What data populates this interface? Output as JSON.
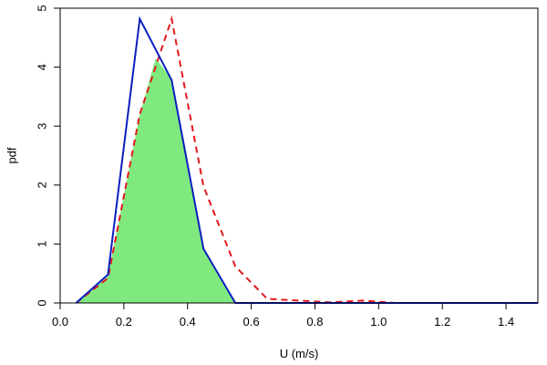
{
  "chart_data": {
    "type": "line",
    "title": "",
    "xlabel": "U (m/s)",
    "ylabel": "pdf",
    "xlim": [
      0,
      1.5
    ],
    "ylim": [
      0,
      5
    ],
    "xticks": [
      0.0,
      0.2,
      0.4,
      0.6,
      0.8,
      1.0,
      1.2,
      1.4
    ],
    "xtick_labels": [
      "0.0",
      "0.2",
      "0.4",
      "0.6",
      "0.8",
      "1.0",
      "1.2",
      "1.4"
    ],
    "yticks": [
      0,
      1,
      2,
      3,
      4,
      5
    ],
    "ytick_labels": [
      "0",
      "1",
      "2",
      "3",
      "4",
      "5"
    ],
    "grid": false,
    "series": [
      {
        "style": "area",
        "color": "#7fe97f",
        "x": [
          0.05,
          0.15,
          0.25,
          0.3,
          0.35,
          0.45,
          0.55
        ],
        "y": [
          0.0,
          0.45,
          3.2,
          4.15,
          3.8,
          0.92,
          0.0
        ]
      },
      {
        "style": "dashed",
        "color": "#e31a1c",
        "x": [
          0.05,
          0.15,
          0.25,
          0.35,
          0.45,
          0.55,
          0.65,
          0.75,
          0.85,
          0.95,
          1.05,
          1.15,
          1.25,
          1.35,
          1.45,
          1.5
        ],
        "y": [
          0.0,
          0.42,
          3.2,
          4.82,
          1.98,
          0.62,
          0.07,
          0.04,
          0.01,
          0.04,
          0.0,
          0.0,
          0.0,
          0.0,
          0.0,
          0.0
        ]
      },
      {
        "style": "solid",
        "color": "#0a1fbf",
        "x": [
          0.05,
          0.15,
          0.25,
          0.35,
          0.45,
          0.55,
          0.65,
          0.75,
          0.85,
          0.95,
          1.05,
          1.15,
          1.25,
          1.35,
          1.45,
          1.5
        ],
        "y": [
          0.0,
          0.48,
          4.82,
          3.78,
          0.92,
          0.0,
          0.0,
          0.0,
          0.0,
          0.0,
          0.0,
          0.0,
          0.0,
          0.0,
          0.0,
          0.0
        ]
      }
    ]
  }
}
